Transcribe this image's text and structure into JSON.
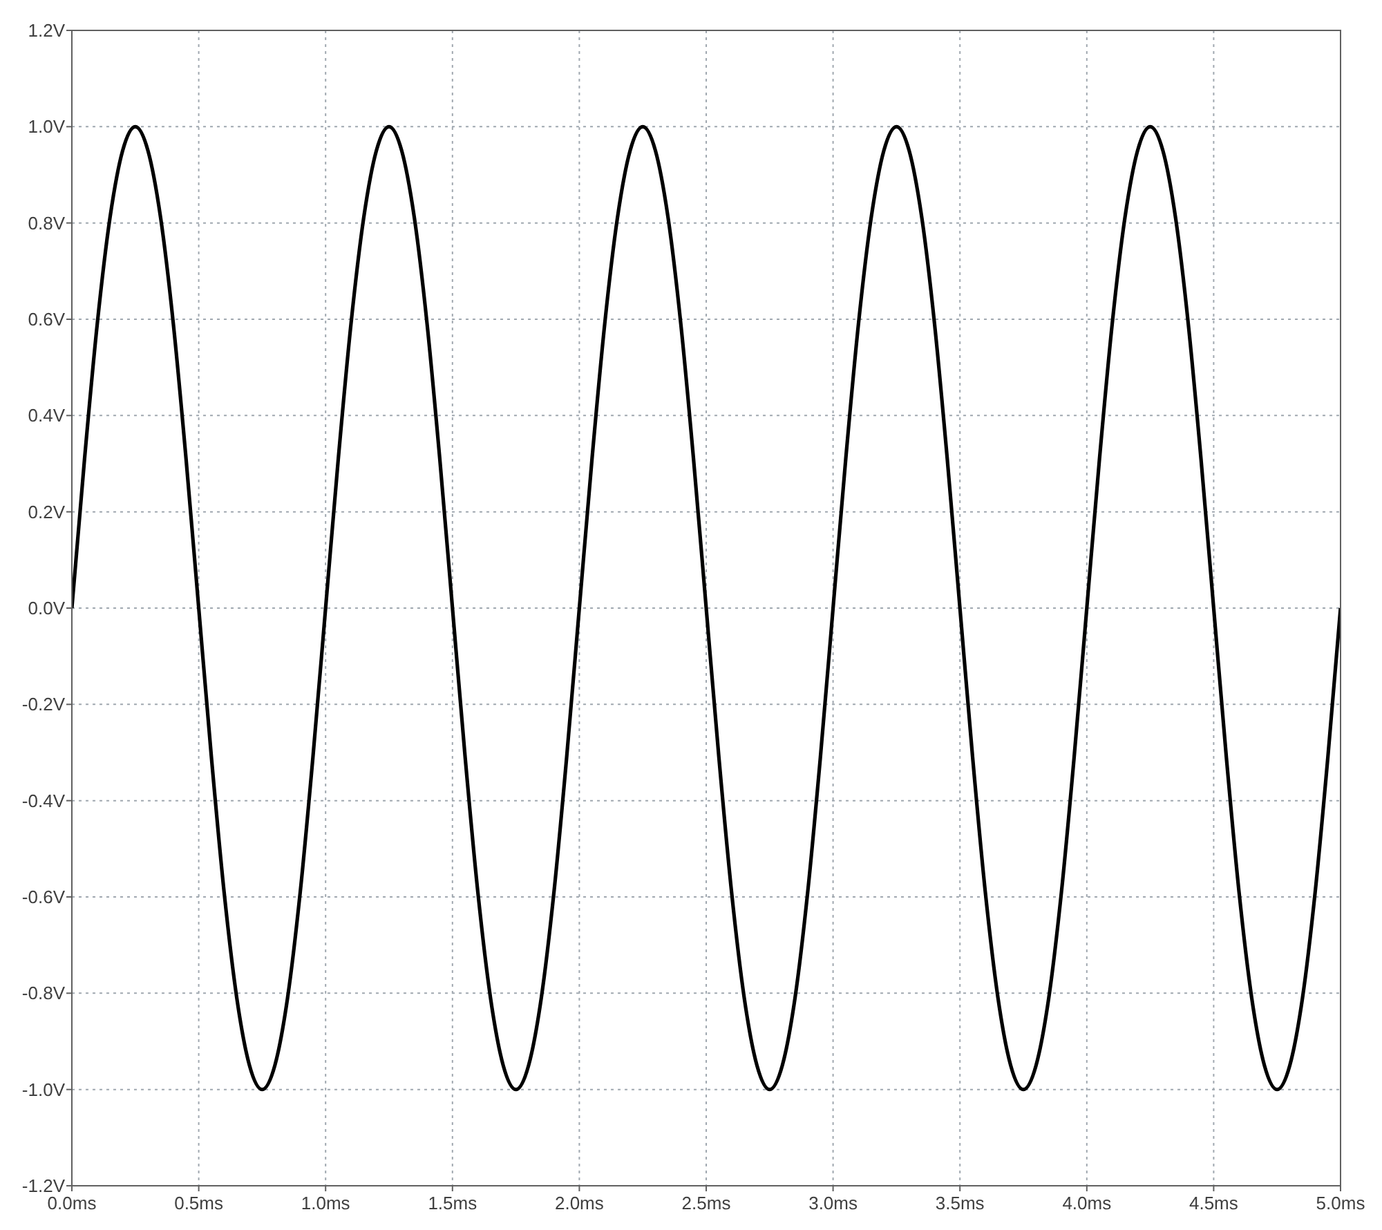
{
  "chart_data": {
    "type": "line",
    "x": [
      0,
      0.05,
      0.1,
      0.15,
      0.2,
      0.25,
      0.3,
      0.35,
      0.4,
      0.45,
      0.5,
      0.55,
      0.6,
      0.65,
      0.7,
      0.75,
      0.8,
      0.85,
      0.9,
      0.95,
      1,
      1.05,
      1.1,
      1.15,
      1.2,
      1.25,
      1.3,
      1.35,
      1.4,
      1.45,
      1.5,
      1.55,
      1.6,
      1.65,
      1.7,
      1.75,
      1.8,
      1.85,
      1.9,
      1.95,
      2,
      2.05,
      2.1,
      2.15,
      2.2,
      2.25,
      2.3,
      2.35,
      2.4,
      2.45,
      2.5,
      2.55,
      2.6,
      2.65,
      2.7,
      2.75,
      2.8,
      2.85,
      2.9,
      2.95,
      3,
      3.05,
      3.1,
      3.15,
      3.2,
      3.25,
      3.3,
      3.35,
      3.4,
      3.45,
      3.5,
      3.55,
      3.6,
      3.65,
      3.7,
      3.75,
      3.8,
      3.85,
      3.9,
      3.95,
      4,
      4.05,
      4.1,
      4.15,
      4.2,
      4.25,
      4.3,
      4.35,
      4.4,
      4.45,
      4.5,
      4.55,
      4.6,
      4.65,
      4.7,
      4.75,
      4.8,
      4.85,
      4.9,
      4.95,
      5
    ],
    "series": [
      {
        "color": "#000000",
        "values": [
          0,
          0.31,
          0.59,
          0.81,
          0.95,
          1,
          0.95,
          0.81,
          0.59,
          0.31,
          0,
          -0.31,
          -0.59,
          -0.81,
          -0.95,
          -1,
          -0.95,
          -0.81,
          -0.59,
          -0.31,
          0,
          0.31,
          0.59,
          0.81,
          0.95,
          1,
          0.95,
          0.81,
          0.59,
          0.31,
          0,
          -0.31,
          -0.59,
          -0.81,
          -0.95,
          -1,
          -0.95,
          -0.81,
          -0.59,
          -0.31,
          0,
          0.31,
          0.59,
          0.81,
          0.95,
          1,
          0.95,
          0.81,
          0.59,
          0.31,
          0,
          -0.31,
          -0.59,
          -0.81,
          -0.95,
          -1,
          -0.95,
          -0.81,
          -0.59,
          -0.31,
          0,
          0.31,
          0.59,
          0.81,
          0.95,
          1,
          0.95,
          0.81,
          0.59,
          0.31,
          0,
          -0.31,
          -0.59,
          -0.81,
          -0.95,
          -1,
          -0.95,
          -0.81,
          -0.59,
          -0.31,
          0,
          0.31,
          0.59,
          0.81,
          0.95,
          1,
          0.95,
          0.81,
          0.59,
          0.31,
          0,
          -0.31,
          -0.59,
          -0.81,
          -0.95,
          -1,
          -0.95,
          -0.81,
          -0.59,
          -0.31,
          0
        ]
      }
    ],
    "xlim": [
      0,
      5
    ],
    "xticks": [
      {
        "value": 0,
        "label": "0.0ms"
      },
      {
        "value": 0.5,
        "label": "0.5ms"
      },
      {
        "value": 1,
        "label": "1.0ms"
      },
      {
        "value": 1.5,
        "label": "1.5ms"
      },
      {
        "value": 2,
        "label": "2.0ms"
      },
      {
        "value": 2.5,
        "label": "2.5ms"
      },
      {
        "value": 3,
        "label": "3.0ms"
      },
      {
        "value": 3.5,
        "label": "3.5ms"
      },
      {
        "value": 4,
        "label": "4.0ms"
      },
      {
        "value": 4.5,
        "label": "4.5ms"
      },
      {
        "value": 5,
        "label": "5.0ms"
      }
    ],
    "ylim": [
      -1.2,
      1.2
    ],
    "yticks": [
      {
        "value": -1.2,
        "label": "-1.2V"
      },
      {
        "value": -1,
        "label": "-1.0V"
      },
      {
        "value": -0.8,
        "label": "-0.8V"
      },
      {
        "value": -0.6,
        "label": "-0.6V"
      },
      {
        "value": -0.4,
        "label": "-0.4V"
      },
      {
        "value": -0.2,
        "label": "-0.2V"
      },
      {
        "value": 0,
        "label": "0.0V"
      },
      {
        "value": 0.2,
        "label": "0.2V"
      },
      {
        "value": 0.4,
        "label": "0.4V"
      },
      {
        "value": 0.6,
        "label": "0.6V"
      },
      {
        "value": 0.8,
        "label": "0.8V"
      },
      {
        "value": 1,
        "label": "1.0V"
      },
      {
        "value": 1.2,
        "label": "1.2V"
      }
    ],
    "grid": true,
    "line_style": "solid"
  }
}
